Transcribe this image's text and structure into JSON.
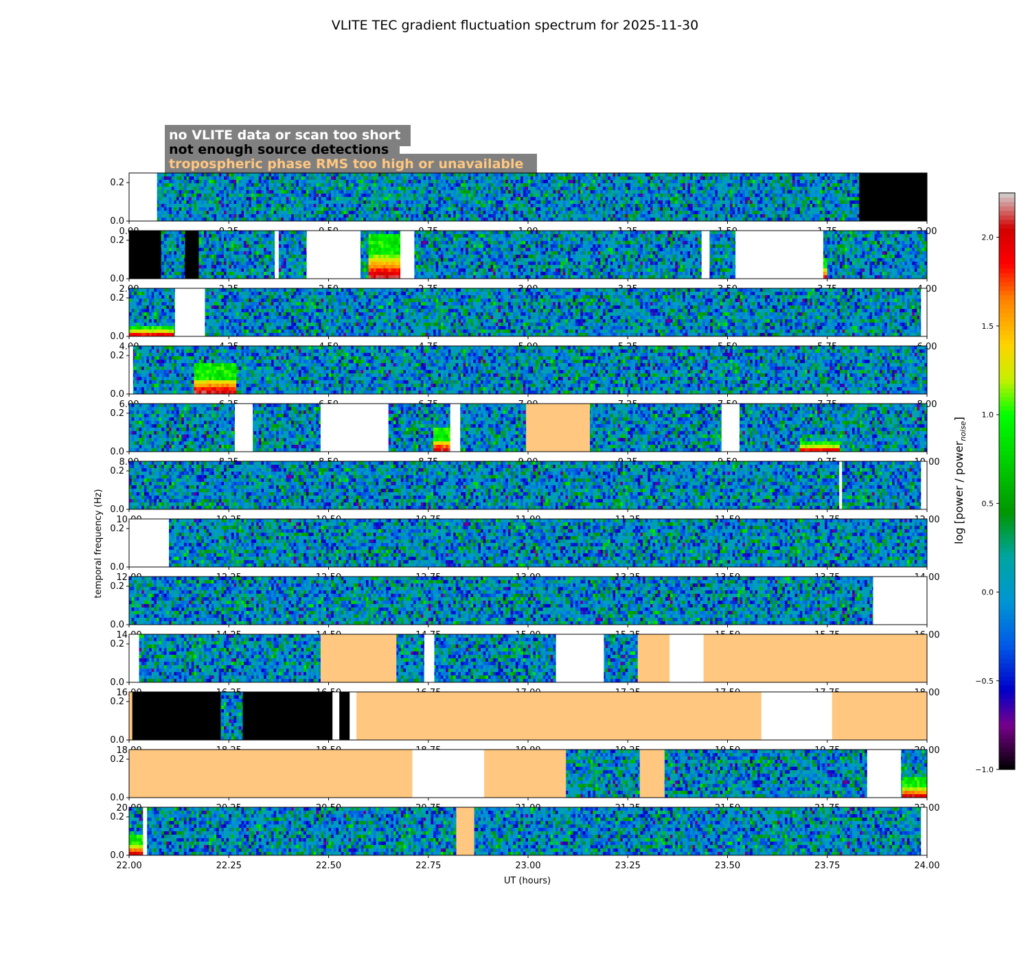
{
  "chart_data": {
    "type": "heatmap",
    "title": "VLITE TEC gradient fluctuation spectrum for 2025-11-30",
    "xlabel": "UT (hours)",
    "ylabel": "temporal frequency (Hz)",
    "colorbar_label": "log [power / power",
    "colorbar_label_sub": "noise",
    "colorbar_label_close": "]",
    "colorbar_range": [
      -1.0,
      2.25
    ],
    "colorbar_ticks": [
      "−1.0",
      "−0.5",
      "0.0",
      "0.5",
      "1.0",
      "1.5",
      "2.0"
    ],
    "colorbar_tick_values": [
      -1.0,
      -0.5,
      0.0,
      0.5,
      1.0,
      1.5,
      2.0
    ],
    "colormap": "nipy_spectral",
    "ylim": [
      0,
      0.25
    ],
    "y_ticks": [
      "0.0",
      "0.2"
    ],
    "y_tick_values": [
      0.0,
      0.2
    ],
    "legend": [
      {
        "label": "no VLITE data or scan too short",
        "text_color": "#ffffff"
      },
      {
        "label": "not enough source detections",
        "text_color": "#000000"
      },
      {
        "label": "tropospheric phase RMS too high or unavailable",
        "text_color": "#ffc77f"
      }
    ],
    "legend_box_color": "#808080",
    "status_colors": {
      "no_data": "#ffffff",
      "few_detections": "#000000",
      "trop_rms": "#ffc77f"
    },
    "panels": [
      {
        "x_range": [
          0,
          2
        ],
        "x_ticks": [
          "0.00",
          "0.25",
          "0.50",
          "0.75",
          "1.00",
          "1.25",
          "1.50",
          "1.75",
          "2.00"
        ],
        "segments": [
          [
            0,
            0.07,
            "no_data"
          ],
          [
            0.07,
            1.83,
            "data"
          ],
          [
            1.83,
            2.0,
            "few_detections"
          ]
        ],
        "hotspots": []
      },
      {
        "x_range": [
          2,
          4
        ],
        "x_ticks": [
          "2.00",
          "2.25",
          "2.50",
          "2.75",
          "3.00",
          "3.25",
          "3.50",
          "3.75",
          "4.00"
        ],
        "segments": [
          [
            2.0,
            2.08,
            "few_detections"
          ],
          [
            2.08,
            2.14,
            "data"
          ],
          [
            2.14,
            2.175,
            "few_detections"
          ],
          [
            2.175,
            2.365,
            "data"
          ],
          [
            2.365,
            2.375,
            "no_data"
          ],
          [
            2.375,
            2.445,
            "data"
          ],
          [
            2.445,
            2.58,
            "no_data"
          ],
          [
            2.58,
            2.68,
            "data"
          ],
          [
            2.68,
            2.715,
            "no_data"
          ],
          [
            2.715,
            3.435,
            "data"
          ],
          [
            3.435,
            3.455,
            "no_data"
          ],
          [
            3.455,
            3.52,
            "data"
          ],
          [
            3.52,
            3.74,
            "no_data"
          ],
          [
            3.74,
            4.0,
            "data"
          ]
        ],
        "hotspots": [
          [
            2.6,
            2.68,
            0.12
          ],
          [
            3.62,
            3.75,
            0.05
          ]
        ]
      },
      {
        "x_range": [
          4,
          6
        ],
        "x_ticks": [
          "4.00",
          "4.25",
          "4.50",
          "4.75",
          "5.00",
          "5.25",
          "5.50",
          "5.75",
          "6.00"
        ],
        "segments": [
          [
            4.0,
            4.115,
            "data"
          ],
          [
            4.115,
            4.19,
            "no_data"
          ],
          [
            4.19,
            5.985,
            "data"
          ],
          [
            5.985,
            6.0,
            "no_data"
          ]
        ],
        "hotspots": [
          [
            4.0,
            4.11,
            0.03
          ]
        ]
      },
      {
        "x_range": [
          6,
          8
        ],
        "x_ticks": [
          "6.00",
          "6.25",
          "6.50",
          "6.75",
          "7.00",
          "7.25",
          "7.50",
          "7.75",
          "8.00"
        ],
        "segments": [
          [
            6.0,
            6.01,
            "no_data"
          ],
          [
            6.01,
            8.0,
            "data"
          ]
        ],
        "hotspots": [
          [
            6.16,
            6.27,
            0.08
          ]
        ]
      },
      {
        "x_range": [
          8,
          10
        ],
        "x_ticks": [
          "8.00",
          "8.25",
          "8.50",
          "8.75",
          "9.00",
          "9.25",
          "9.50",
          "9.75",
          "10.00"
        ],
        "segments": [
          [
            8.0,
            8.265,
            "data"
          ],
          [
            8.265,
            8.31,
            "no_data"
          ],
          [
            8.31,
            8.48,
            "data"
          ],
          [
            8.48,
            8.65,
            "no_data"
          ],
          [
            8.65,
            8.805,
            "data"
          ],
          [
            8.805,
            8.83,
            "no_data"
          ],
          [
            8.83,
            8.995,
            "data"
          ],
          [
            8.995,
            9.155,
            "trop_rms"
          ],
          [
            9.155,
            9.485,
            "data"
          ],
          [
            9.485,
            9.53,
            "no_data"
          ],
          [
            9.53,
            10.0,
            "data"
          ]
        ],
        "hotspots": [
          [
            8.76,
            8.82,
            0.06
          ],
          [
            9.68,
            9.78,
            0.03
          ]
        ]
      },
      {
        "x_range": [
          10,
          12
        ],
        "x_ticks": [
          "10.00",
          "10.25",
          "10.50",
          "10.75",
          "11.00",
          "11.25",
          "11.50",
          "11.75",
          "12.00"
        ],
        "segments": [
          [
            10.0,
            11.78,
            "data"
          ],
          [
            11.78,
            11.787,
            "no_data"
          ],
          [
            11.787,
            11.985,
            "data"
          ],
          [
            11.985,
            12.0,
            "no_data"
          ]
        ],
        "hotspots": []
      },
      {
        "x_range": [
          12,
          14
        ],
        "x_ticks": [
          "12.00",
          "12.25",
          "12.50",
          "12.75",
          "13.00",
          "13.25",
          "13.50",
          "13.75",
          "14.00"
        ],
        "segments": [
          [
            12.0,
            12.1,
            "no_data"
          ],
          [
            12.1,
            14.0,
            "data"
          ]
        ],
        "hotspots": []
      },
      {
        "x_range": [
          14,
          16
        ],
        "x_ticks": [
          "14.00",
          "14.25",
          "14.50",
          "14.75",
          "15.00",
          "15.25",
          "15.50",
          "15.75",
          "16.00"
        ],
        "segments": [
          [
            14.0,
            15.865,
            "data"
          ],
          [
            15.865,
            16.0,
            "no_data"
          ]
        ],
        "hotspots": []
      },
      {
        "x_range": [
          16,
          18
        ],
        "x_ticks": [
          "16.00",
          "16.25",
          "16.50",
          "16.75",
          "17.00",
          "17.25",
          "17.50",
          "17.75",
          "18.00"
        ],
        "segments": [
          [
            16.0,
            16.025,
            "no_data"
          ],
          [
            16.025,
            16.48,
            "data"
          ],
          [
            16.48,
            16.67,
            "trop_rms"
          ],
          [
            16.67,
            16.74,
            "data"
          ],
          [
            16.74,
            16.765,
            "no_data"
          ],
          [
            16.765,
            17.07,
            "data"
          ],
          [
            17.07,
            17.19,
            "no_data"
          ],
          [
            17.19,
            17.275,
            "data"
          ],
          [
            17.275,
            17.355,
            "trop_rms"
          ],
          [
            17.355,
            17.44,
            "no_data"
          ],
          [
            17.44,
            18.0,
            "trop_rms"
          ]
        ],
        "hotspots": []
      },
      {
        "x_range": [
          18,
          20
        ],
        "x_ticks": [
          "18.00",
          "18.25",
          "18.50",
          "18.75",
          "19.00",
          "19.25",
          "19.50",
          "19.75",
          "20.00"
        ],
        "segments": [
          [
            18.0,
            18.008,
            "trop_rms"
          ],
          [
            18.008,
            18.23,
            "few_detections"
          ],
          [
            18.23,
            18.285,
            "data"
          ],
          [
            18.285,
            18.51,
            "few_detections"
          ],
          [
            18.51,
            18.527,
            "no_data"
          ],
          [
            18.527,
            18.553,
            "few_detections"
          ],
          [
            18.553,
            18.57,
            "no_data"
          ],
          [
            18.57,
            19.585,
            "trop_rms"
          ],
          [
            19.585,
            19.762,
            "no_data"
          ],
          [
            19.762,
            20.0,
            "trop_rms"
          ]
        ],
        "hotspots": []
      },
      {
        "x_range": [
          20,
          22
        ],
        "x_ticks": [
          "20.00",
          "20.25",
          "20.50",
          "20.75",
          "21.00",
          "21.25",
          "21.50",
          "21.75",
          "22.00"
        ],
        "segments": [
          [
            20.0,
            20.71,
            "trop_rms"
          ],
          [
            20.71,
            20.89,
            "no_data"
          ],
          [
            20.89,
            21.095,
            "trop_rms"
          ],
          [
            21.095,
            21.28,
            "data"
          ],
          [
            21.28,
            21.342,
            "trop_rms"
          ],
          [
            21.342,
            21.85,
            "data"
          ],
          [
            21.85,
            21.935,
            "no_data"
          ],
          [
            21.935,
            22.0,
            "data"
          ]
        ],
        "hotspots": [
          [
            21.935,
            22.0,
            0.05
          ]
        ]
      },
      {
        "x_range": [
          22,
          24
        ],
        "x_ticks": [
          "22.00",
          "22.25",
          "22.50",
          "22.75",
          "23.00",
          "23.25",
          "23.50",
          "23.75",
          "24.00"
        ],
        "segments": [
          [
            22.0,
            22.035,
            "data"
          ],
          [
            22.035,
            22.045,
            "no_data"
          ],
          [
            22.045,
            22.82,
            "data"
          ],
          [
            22.82,
            22.865,
            "trop_rms"
          ],
          [
            22.865,
            23.985,
            "data"
          ],
          [
            23.985,
            24.0,
            "no_data"
          ]
        ],
        "hotspots": [
          [
            22.0,
            22.035,
            0.05
          ]
        ]
      }
    ]
  }
}
